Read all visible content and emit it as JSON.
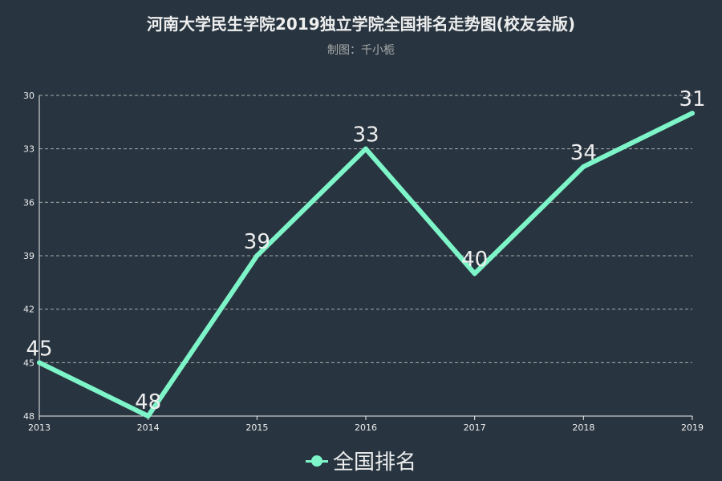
{
  "title": "河南大学民生学院2019独立学院全国排名走势图(校友会版)",
  "subtitle": "制图：千小栀",
  "colors": {
    "background": "#283540",
    "series": "#7ef5c8",
    "text": "#eeeeee",
    "subtext": "#aaaaaa"
  },
  "legend": {
    "label": "全国排名",
    "icon": "line-with-circle-icon",
    "position": "bottom-center"
  },
  "chart_data": {
    "type": "line",
    "title": "河南大学民生学院2019独立学院全国排名走势图(校友会版)",
    "subtitle": "制图：千小栀",
    "categories": [
      "2013",
      "2014",
      "2015",
      "2016",
      "2017",
      "2018",
      "2019"
    ],
    "series": [
      {
        "name": "全国排名",
        "values": [
          45,
          48,
          39,
          33,
          40,
          34,
          31
        ]
      }
    ],
    "ylim": [
      30,
      48
    ],
    "y_inverted": true,
    "yticks": [
      30,
      33,
      36,
      39,
      42,
      45,
      48
    ],
    "grid": true,
    "data_labels": true,
    "legend": "bottom-center"
  }
}
